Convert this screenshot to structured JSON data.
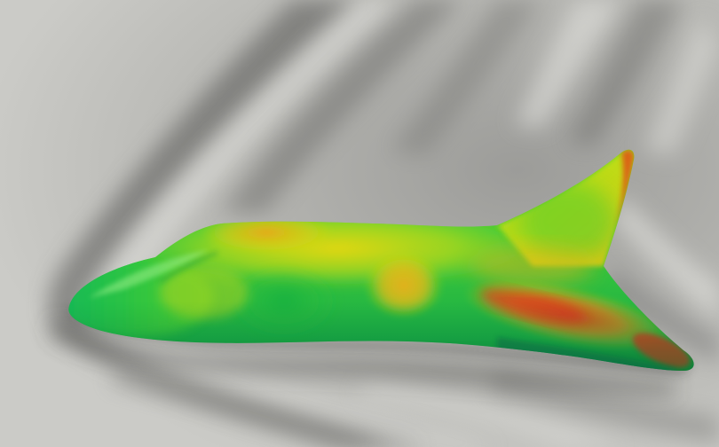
{
  "scene": {
    "subject": "aircraft-body-surface-contour",
    "background_color": "#c9c9c5",
    "shock_wave_shading": "grayscale",
    "colormap": [
      "#16b85a",
      "#3ccf3a",
      "#9ad81e",
      "#e4dc10",
      "#f0a21a",
      "#e2351c"
    ]
  }
}
